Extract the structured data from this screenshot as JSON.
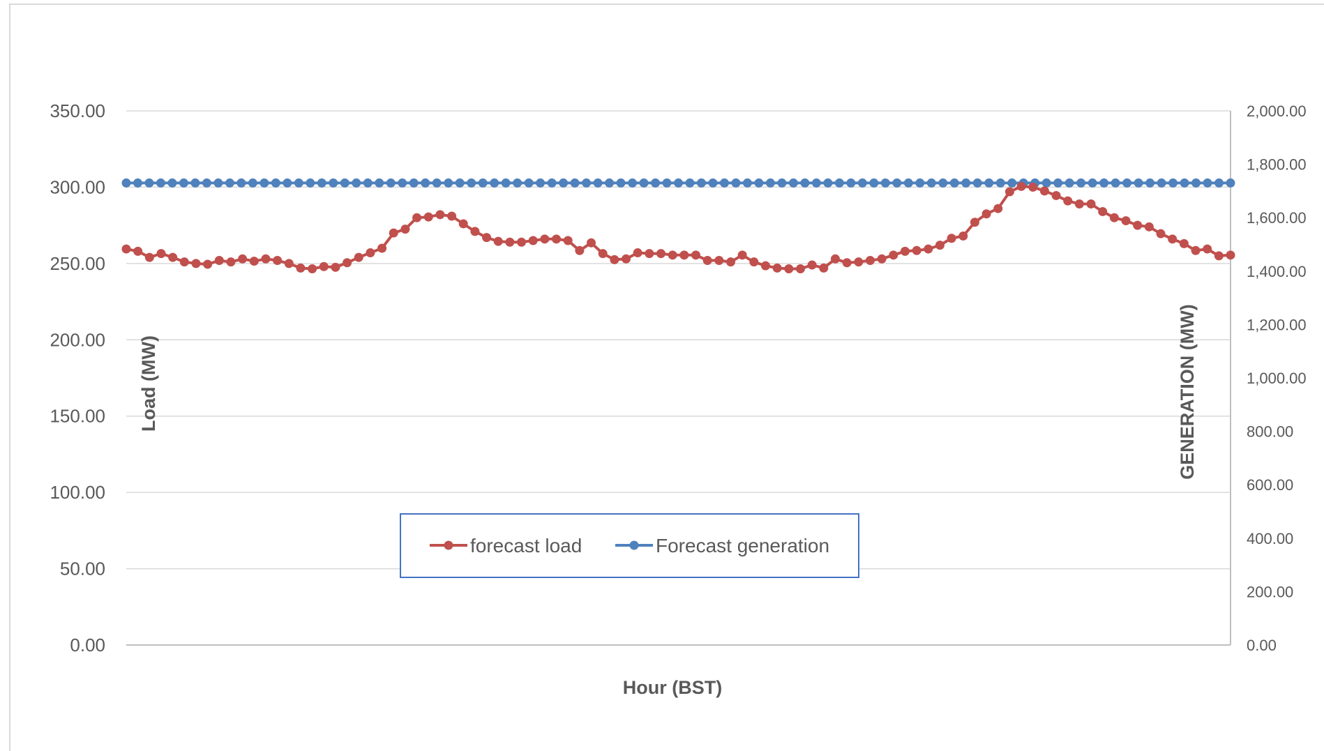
{
  "chart_data": {
    "type": "line",
    "title": "",
    "xlabel": "Hour (BST)",
    "ylabel": "Load (MW)",
    "y2label": "GENERATION (MW)",
    "ylim": [
      0,
      350
    ],
    "y2lim": [
      0,
      2000
    ],
    "grid": true,
    "legend_position": "bottom-center",
    "yticks": [
      "0.00",
      "50.00",
      "100.00",
      "150.00",
      "200.00",
      "250.00",
      "300.00",
      "350.00"
    ],
    "y2ticks": [
      "0.00",
      "200.00",
      "400.00",
      "600.00",
      "800.00",
      "1,000.00",
      "1,200.00",
      "1,400.00",
      "1,600.00",
      "1,800.00",
      "2,000.00"
    ],
    "series": [
      {
        "name": "forecast load",
        "axis": "left",
        "color": "#C0504D",
        "values": [
          259.5,
          258.0,
          254.0,
          256.5,
          254.0,
          251.0,
          250.0,
          249.5,
          252.0,
          251.0,
          253.0,
          251.5,
          253.0,
          252.0,
          250.0,
          247.0,
          246.5,
          248.0,
          247.5,
          250.5,
          254.0,
          257.0,
          260.0,
          270.0,
          272.5,
          280.0,
          280.5,
          282.0,
          281.0,
          276.0,
          271.0,
          267.0,
          264.5,
          264.0,
          264.0,
          265.0,
          266.0,
          266.0,
          265.0,
          258.5,
          263.5,
          256.5,
          252.5,
          253.0,
          257.0,
          256.5,
          256.5,
          255.5,
          255.5,
          255.5,
          252.0,
          252.0,
          251.0,
          255.5,
          251.0,
          248.5,
          247.0,
          246.5,
          246.5,
          249.0,
          247.0,
          253.0,
          250.5,
          251.0,
          252.0,
          253.0,
          255.5,
          258.0,
          258.5,
          259.5,
          262.0,
          266.5,
          268.0,
          277.0,
          282.5,
          286.0,
          297.0,
          300.5,
          300.0,
          297.5,
          294.5,
          291.0,
          289.0,
          289.0,
          284.0,
          280.0,
          278.0,
          275.0,
          274.0,
          269.5,
          266.0,
          263.0,
          258.5,
          259.5,
          255.0,
          255.5
        ]
      },
      {
        "name": "Forecast generation",
        "axis": "right",
        "color": "#4F81BD",
        "values": [
          1730,
          1730,
          1730,
          1730,
          1730,
          1730,
          1730,
          1730,
          1730,
          1730,
          1730,
          1730,
          1730,
          1730,
          1730,
          1730,
          1730,
          1730,
          1730,
          1730,
          1730,
          1730,
          1730,
          1730,
          1730,
          1730,
          1730,
          1730,
          1730,
          1730,
          1730,
          1730,
          1730,
          1730,
          1730,
          1730,
          1730,
          1730,
          1730,
          1730,
          1730,
          1730,
          1730,
          1730,
          1730,
          1730,
          1730,
          1730,
          1730,
          1730,
          1730,
          1730,
          1730,
          1730,
          1730,
          1730,
          1730,
          1730,
          1730,
          1730,
          1730,
          1730,
          1730,
          1730,
          1730,
          1730,
          1730,
          1730,
          1730,
          1730,
          1730,
          1730,
          1730,
          1730,
          1730,
          1730,
          1730,
          1730,
          1730,
          1730,
          1730,
          1730,
          1730,
          1730,
          1730,
          1730,
          1730,
          1730,
          1730,
          1730,
          1730,
          1730,
          1730,
          1730,
          1730,
          1730,
          1730
        ]
      }
    ]
  }
}
